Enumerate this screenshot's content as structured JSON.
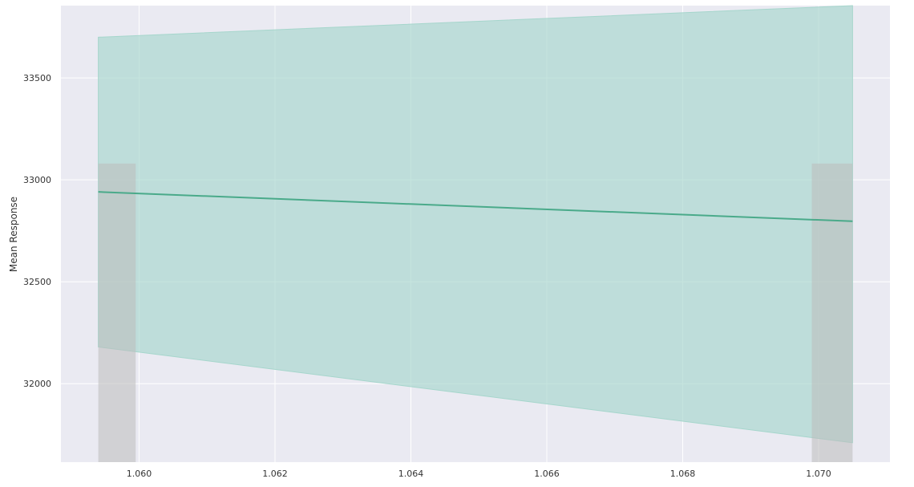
{
  "chart_data": {
    "type": "line",
    "title": "",
    "xlabel": "",
    "ylabel": "Mean Response",
    "xlim": [
      1.05885,
      1.07105
    ],
    "ylim": [
      31615,
      33855
    ],
    "x_ticks": [
      1.06,
      1.062,
      1.064,
      1.066,
      1.068,
      1.07
    ],
    "x_tick_labels": [
      "1.060",
      "1.062",
      "1.064",
      "1.066",
      "1.068",
      "1.070"
    ],
    "y_ticks": [
      32000,
      32500,
      33000,
      33500
    ],
    "y_tick_labels": [
      "32000",
      "32500",
      "33000",
      "33500"
    ],
    "grid": true,
    "series": [
      {
        "x": [
          1.0594,
          1.0705
        ],
        "y": [
          32941,
          32797
        ],
        "lower": [
          32180,
          31710
        ],
        "upper": [
          33700,
          33885
        ]
      }
    ],
    "histogram_bars": [
      {
        "x0": 1.0594,
        "x1": 1.05995,
        "value": 33080
      },
      {
        "x0": 1.0699,
        "x1": 1.0705,
        "value": 33080
      }
    ],
    "colors": {
      "background": "#eaeaf2",
      "grid": "#ffffff",
      "line": "#4aaa8a",
      "band": "#a6d6cc",
      "histogram": "#bcbcbc"
    }
  }
}
